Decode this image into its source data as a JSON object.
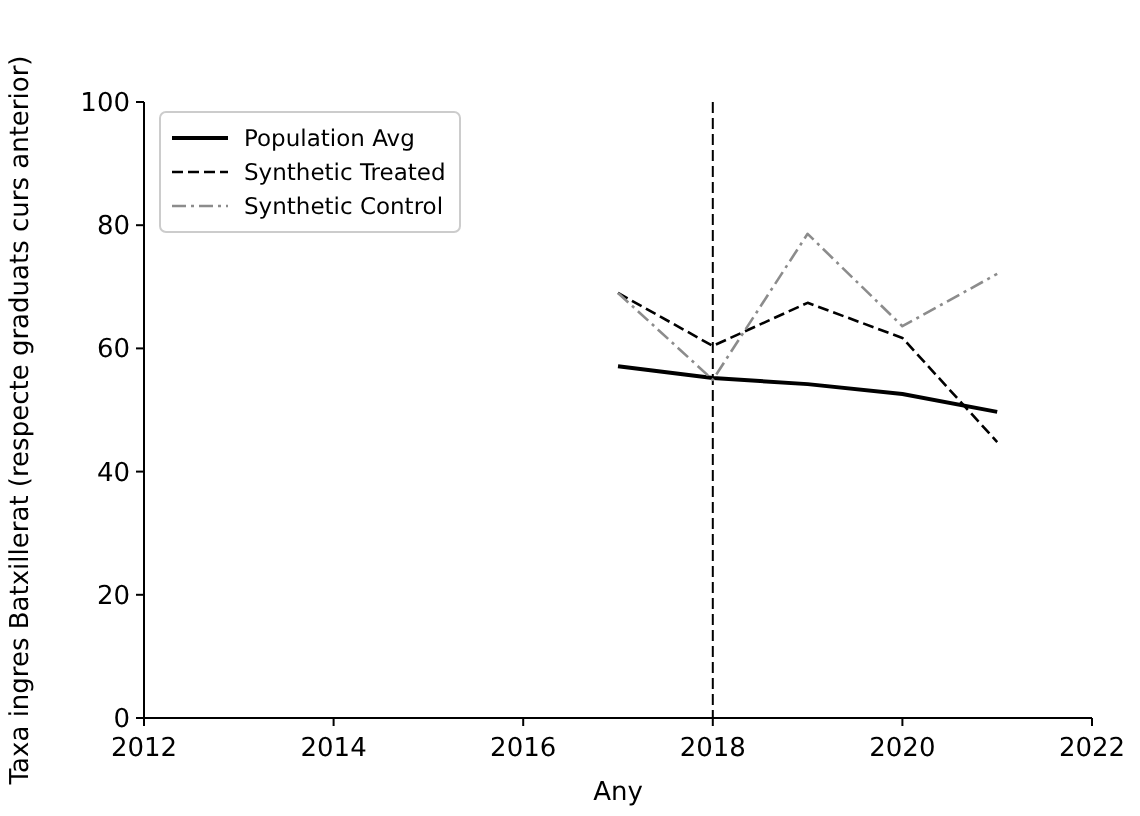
{
  "chart_data": {
    "type": "line",
    "xlabel": "Any",
    "ylabel": "Taxa ingres Batxillerat (respecte graduats curs anterior)",
    "x": [
      2017,
      2018,
      2019,
      2020,
      2021
    ],
    "series": [
      {
        "name": "Population Avg",
        "color": "#000000",
        "line_style": "solid",
        "values": [
          57.1,
          55.2,
          54.2,
          52.6,
          49.7
        ]
      },
      {
        "name": "Synthetic Treated",
        "color": "#000000",
        "line_style": "dashed",
        "values": [
          69,
          60.4,
          67.4,
          61.7,
          44.8
        ]
      },
      {
        "name": "Synthetic Control",
        "color": "#8c8c8c",
        "line_style": "dashdot",
        "values": [
          69,
          54.9,
          78.6,
          63.6,
          72.1
        ]
      }
    ],
    "xlim": [
      2012,
      2022
    ],
    "xticks": [
      2012,
      2014,
      2016,
      2018,
      2020,
      2022
    ],
    "ylim": [
      0,
      100
    ],
    "yticks": [
      0,
      20,
      40,
      60,
      80,
      100
    ],
    "ref_lines": [
      {
        "axis": "x",
        "value": 2018,
        "color": "#000000",
        "line_style": "dashed"
      }
    ],
    "grid": false,
    "legend": "top left",
    "marker": "none"
  }
}
